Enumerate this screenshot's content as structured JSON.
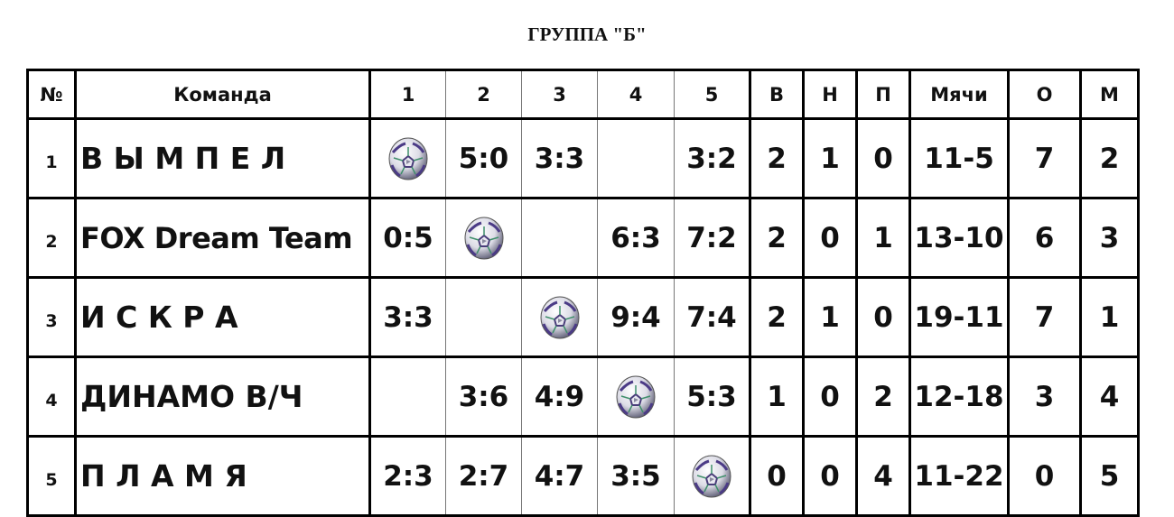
{
  "title": "ГРУППА \"Б\"",
  "headers": [
    "№",
    "Команда",
    "1",
    "2",
    "3",
    "4",
    "5",
    "В",
    "Н",
    "П",
    "Мячи",
    "О",
    "М"
  ],
  "rows": [
    {
      "num": "1",
      "team": "В Ы М П Е Л",
      "results": [
        "ball",
        "5:0",
        "3:3",
        "",
        "3:2"
      ],
      "w": "2",
      "d": "1",
      "l": "0",
      "goals": "11-5",
      "points": "7",
      "place": "2"
    },
    {
      "num": "2",
      "team": "FOX Dream Team",
      "results": [
        "0:5",
        "ball",
        "",
        "6:3",
        "7:2"
      ],
      "w": "2",
      "d": "0",
      "l": "1",
      "goals": "13-10",
      "points": "6",
      "place": "3"
    },
    {
      "num": "3",
      "team": "И  С  К  Р  А",
      "results": [
        "3:3",
        "",
        "ball",
        "9:4",
        "7:4"
      ],
      "w": "2",
      "d": "1",
      "l": "0",
      "goals": "19-11",
      "points": "7",
      "place": "1"
    },
    {
      "num": "4",
      "team": "ДИНАМО  В/Ч",
      "results": [
        "",
        "3:6",
        "4:9",
        "ball",
        "5:3"
      ],
      "w": "1",
      "d": "0",
      "l": "2",
      "goals": "12-18",
      "points": "3",
      "place": "4"
    },
    {
      "num": "5",
      "team": "П Л А М Я",
      "results": [
        "2:3",
        "2:7",
        "4:7",
        "3:5",
        "ball"
      ],
      "w": "0",
      "d": "0",
      "l": "4",
      "goals": "11-22",
      "points": "0",
      "place": "5"
    }
  ],
  "icons": {
    "diagonal": "soccer-ball-icon"
  }
}
